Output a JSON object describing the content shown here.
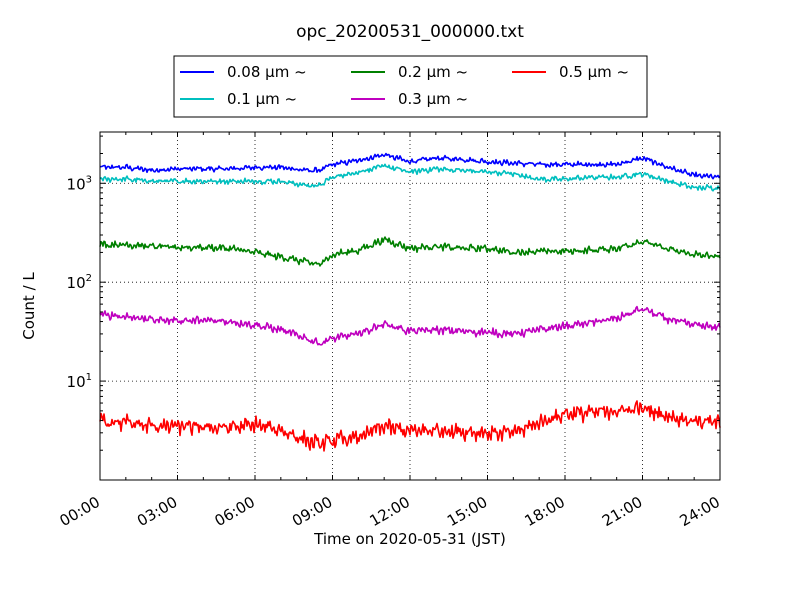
{
  "chart_data": {
    "type": "line",
    "title": "opc_20200531_000000.txt",
    "xlabel": "Time on 2020-05-31 (JST)",
    "ylabel": "Count / L",
    "x_unit": "hours",
    "xlim": [
      0,
      24
    ],
    "ylim": [
      1.0,
      3300
    ],
    "yscale": "log",
    "grid": true,
    "legend_position": "top-center",
    "x_ticks": [
      {
        "value": 0,
        "label": "00:00"
      },
      {
        "value": 3,
        "label": "03:00"
      },
      {
        "value": 6,
        "label": "06:00"
      },
      {
        "value": 9,
        "label": "09:00"
      },
      {
        "value": 12,
        "label": "12:00"
      },
      {
        "value": 15,
        "label": "15:00"
      },
      {
        "value": 18,
        "label": "18:00"
      },
      {
        "value": 21,
        "label": "21:00"
      },
      {
        "value": 24,
        "label": "24:00"
      }
    ],
    "y_ticks": [
      {
        "value": 10,
        "base": "10",
        "exp": "1"
      },
      {
        "value": 100,
        "base": "10",
        "exp": "2"
      },
      {
        "value": 1000,
        "base": "10",
        "exp": "3"
      }
    ],
    "x": [
      0,
      1,
      2,
      3,
      4,
      5,
      6,
      7,
      8,
      8.5,
      9,
      10,
      11,
      12,
      13,
      14,
      15,
      16,
      17,
      18,
      19,
      20,
      21,
      22,
      23,
      24
    ],
    "series": [
      {
        "name": "0.08 μm ~",
        "color": "#0000ff",
        "noise": 0.06,
        "values": [
          1450,
          1450,
          1350,
          1400,
          1400,
          1400,
          1450,
          1450,
          1350,
          1350,
          1550,
          1700,
          1950,
          1650,
          1800,
          1750,
          1650,
          1600,
          1550,
          1550,
          1550,
          1550,
          1800,
          1450,
          1200,
          1150
        ]
      },
      {
        "name": "0.1 μm ~",
        "color": "#00bfbf",
        "noise": 0.06,
        "values": [
          1100,
          1100,
          1050,
          1050,
          1050,
          1050,
          1050,
          1050,
          950,
          950,
          1150,
          1300,
          1500,
          1300,
          1400,
          1350,
          1300,
          1250,
          1100,
          1100,
          1150,
          1150,
          1250,
          1050,
          900,
          900
        ]
      },
      {
        "name": "0.2 μm ~",
        "color": "#008000",
        "noise": 0.08,
        "values": [
          240,
          240,
          230,
          225,
          225,
          220,
          200,
          180,
          160,
          150,
          190,
          210,
          270,
          220,
          230,
          220,
          220,
          200,
          205,
          205,
          210,
          220,
          260,
          215,
          190,
          180
        ]
      },
      {
        "name": "0.3 μm ~",
        "color": "#bf00bf",
        "noise": 0.09,
        "values": [
          47,
          45,
          42,
          41,
          41,
          40,
          37,
          33,
          27,
          24,
          27,
          30,
          38,
          32,
          33,
          32,
          31,
          30,
          33,
          36,
          39,
          43,
          54,
          42,
          37,
          35
        ]
      },
      {
        "name": "0.5 μm ~",
        "color": "#ff0000",
        "noise": 0.18,
        "values": [
          4.0,
          3.8,
          3.5,
          3.5,
          3.4,
          3.4,
          3.6,
          3.2,
          2.5,
          2.3,
          2.5,
          2.7,
          3.5,
          3.1,
          3.2,
          3.1,
          3.0,
          3.0,
          3.8,
          4.7,
          4.8,
          5.0,
          5.3,
          4.4,
          4.0,
          3.8
        ]
      }
    ]
  }
}
